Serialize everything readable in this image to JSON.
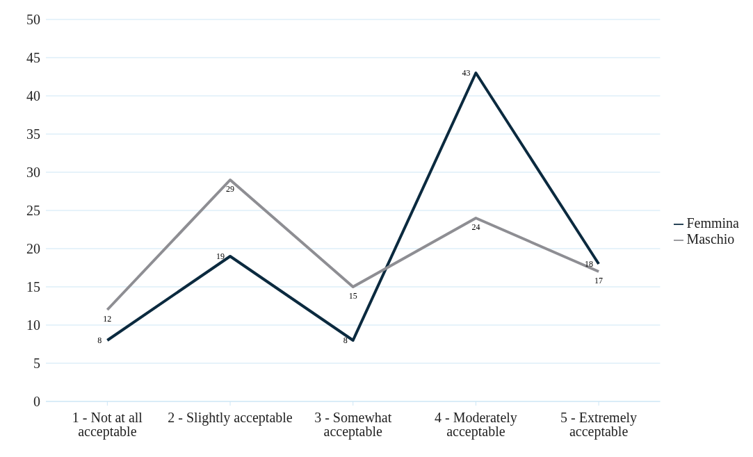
{
  "chart_data": {
    "type": "line",
    "categories": [
      "1 - Not at all acceptable",
      "2 - Slightly acceptable",
      "3 - Somewhat acceptable",
      "4 - Moderately acceptable",
      "5 - Extremely acceptable"
    ],
    "series": [
      {
        "name": "Femmina",
        "color": "#0b2a3f",
        "values": [
          8,
          19,
          8,
          43,
          18
        ]
      },
      {
        "name": "Maschio",
        "color": "#8e8e93",
        "values": [
          12,
          29,
          15,
          24,
          17
        ]
      }
    ],
    "ylim": [
      0,
      50
    ],
    "yticks": [
      0,
      5,
      10,
      15,
      20,
      25,
      30,
      35,
      40,
      45,
      50
    ],
    "grid": "y",
    "legend": "right",
    "data_labels": true,
    "marker": "none",
    "line_style": "solid"
  }
}
